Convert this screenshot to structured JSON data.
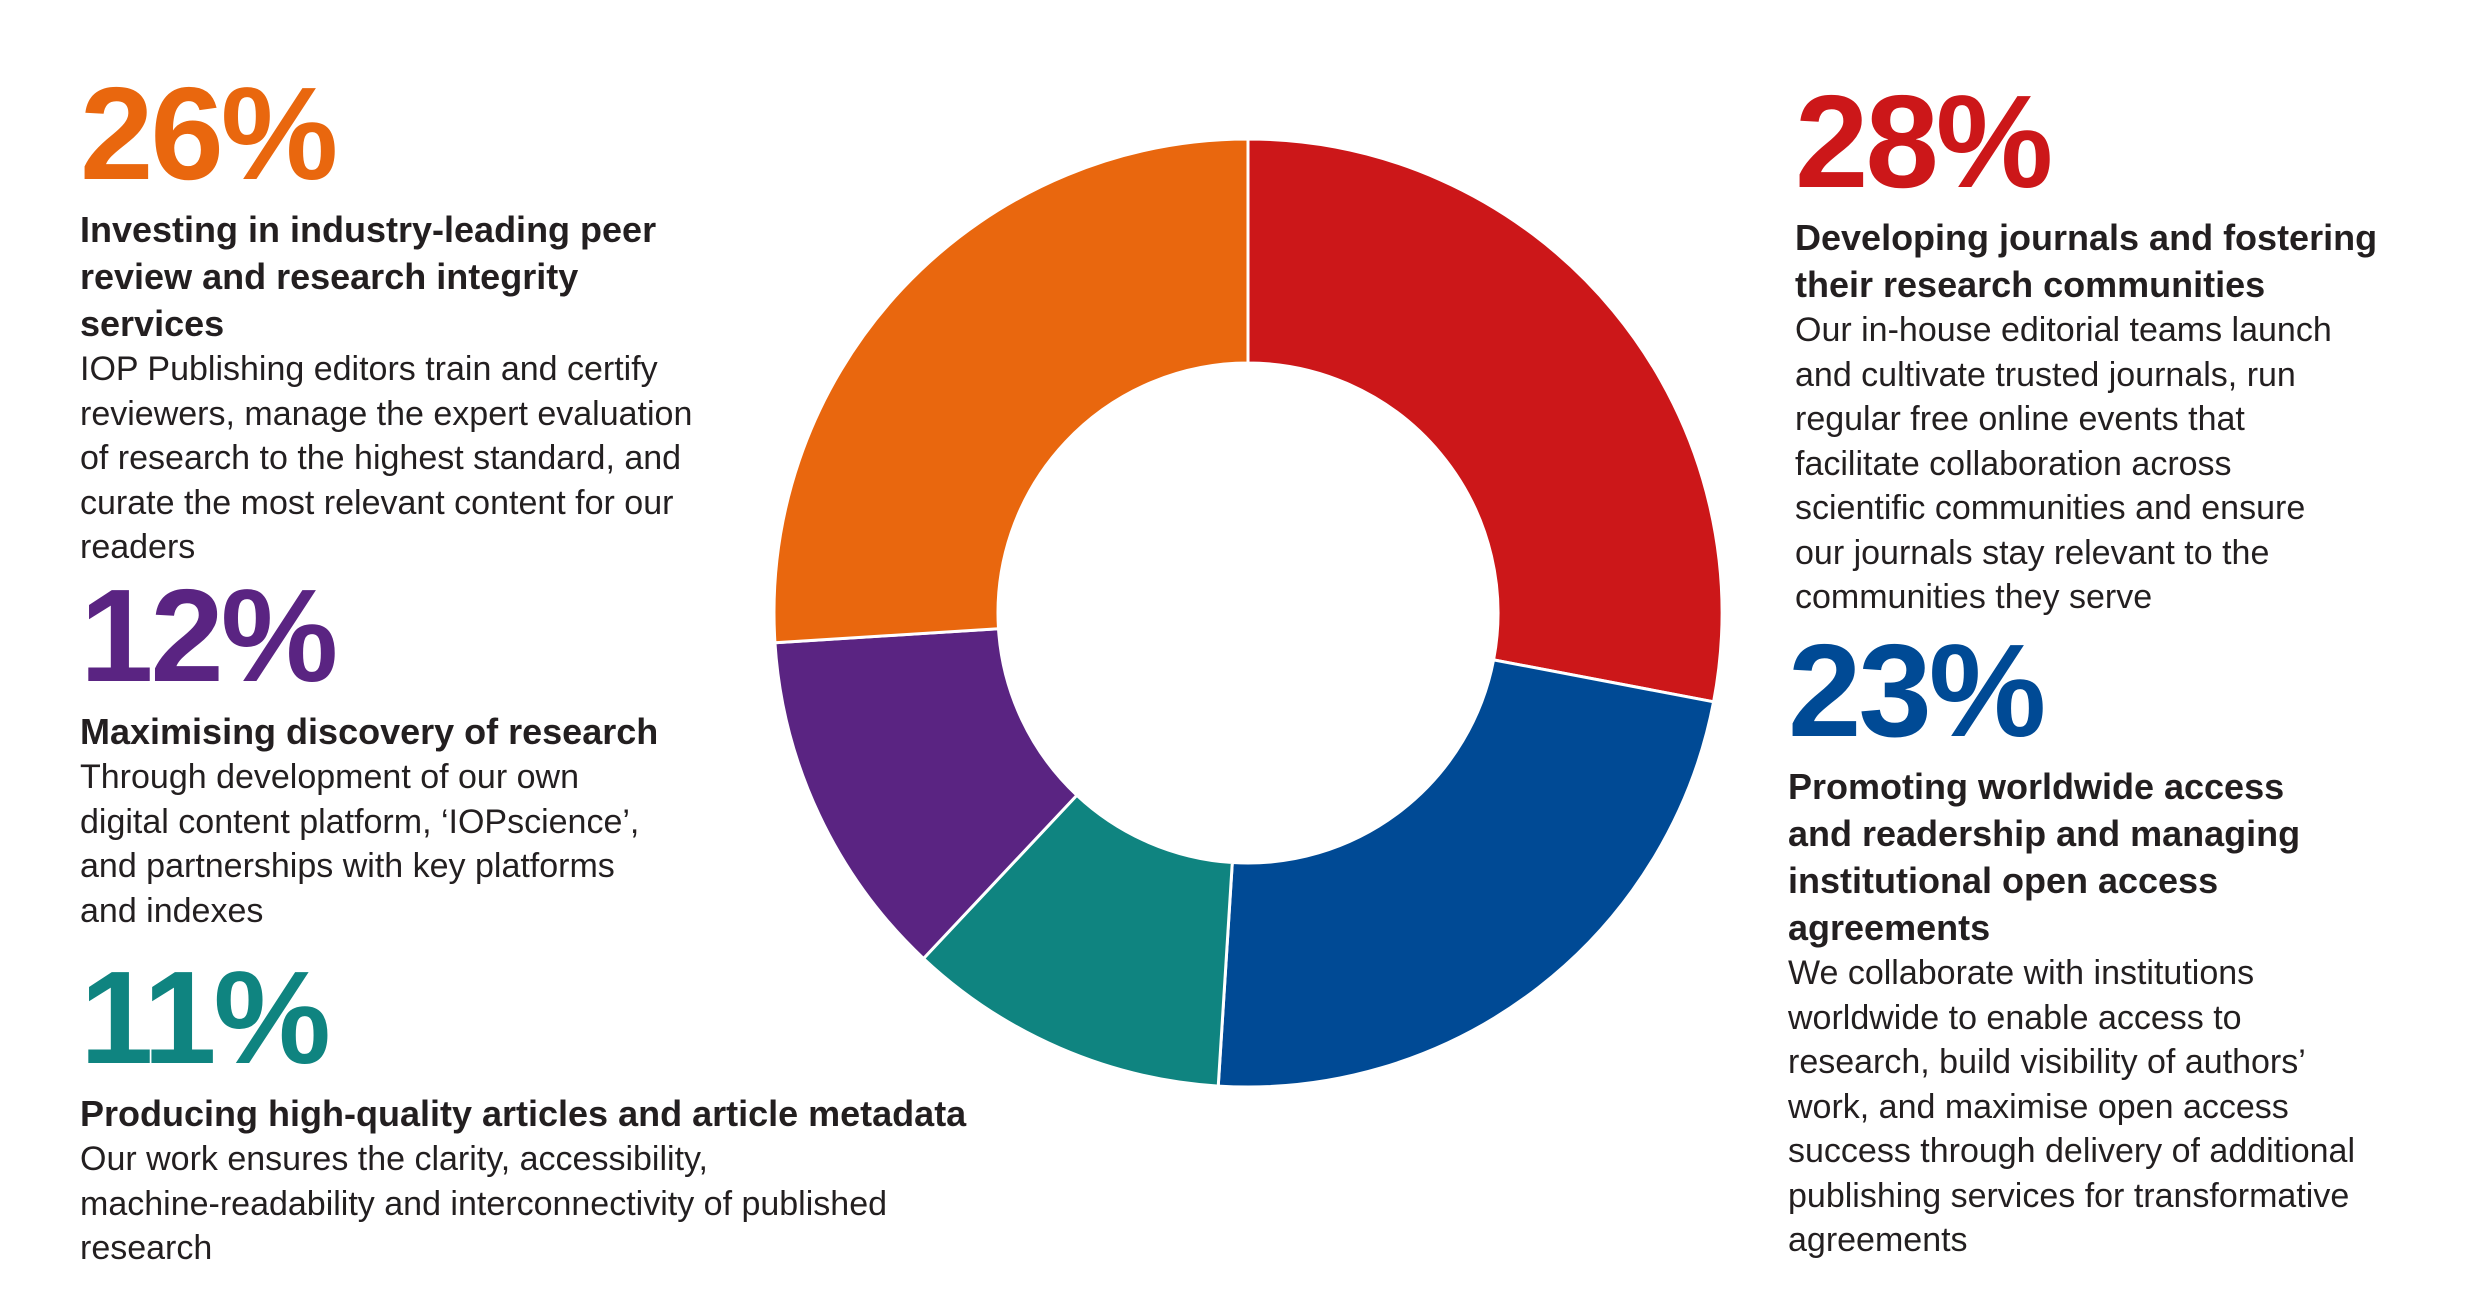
{
  "chart_data": {
    "type": "pie",
    "variant": "donut",
    "unit": "%",
    "slices": [
      {
        "id": "s28",
        "value": 28,
        "label": "28%",
        "heading": "Developing journals and fostering their research communities",
        "color": "#cc1719"
      },
      {
        "id": "s23",
        "value": 23,
        "label": "23%",
        "heading": "Promoting worldwide access and readership and managing institutional open access agreements",
        "color": "#004a95"
      },
      {
        "id": "s11",
        "value": 11,
        "label": "11%",
        "heading": "Producing high-quality articles and article metadata",
        "color": "#0f8480"
      },
      {
        "id": "s12",
        "value": 12,
        "label": "12%",
        "heading": "Maximising discovery of research",
        "color": "#5a2482"
      },
      {
        "id": "s26",
        "value": 26,
        "label": "26%",
        "heading": "Investing in industry-leading peer review and research integrity services",
        "color": "#e9670e"
      }
    ]
  },
  "blocks": {
    "b26": {
      "pct": "26%",
      "heading": [
        "Investing in industry-leading peer",
        "review and research integrity",
        "services"
      ],
      "body": [
        "IOP Publishing editors train and certify",
        "reviewers, manage the expert evaluation",
        "of research to the highest standard, and",
        "curate the most relevant content for our",
        "readers"
      ]
    },
    "b12": {
      "pct": "12%",
      "heading": [
        "Maximising discovery of research"
      ],
      "body": [
        "Through development of our own",
        "digital content platform, ‘IOPscience’,",
        "and partnerships with key platforms",
        "and indexes"
      ]
    },
    "b11": {
      "pct": "11%",
      "heading": [
        "Producing high-quality articles and article metadata"
      ],
      "body": [
        "Our work ensures the clarity, accessibility,",
        "machine-readability and interconnectivity of published",
        "research"
      ]
    },
    "b28": {
      "pct": "28%",
      "heading": [
        "Developing journals and fostering",
        "their research communities"
      ],
      "body": [
        "Our in-house editorial teams launch",
        "and cultivate trusted journals, run",
        "regular free online events that",
        "facilitate collaboration across",
        "scientific communities and ensure",
        "our journals stay relevant to the",
        "communities they serve"
      ]
    },
    "b23": {
      "pct": "23%",
      "heading": [
        "Promoting worldwide access",
        "and readership and managing",
        "institutional open access",
        "agreements"
      ],
      "body": [
        "We collaborate with institutions",
        "worldwide to enable access to",
        "research, build visibility of authors’",
        "work, and maximise open access",
        "success through delivery of additional",
        "publishing services for transformative",
        "agreements"
      ]
    }
  }
}
